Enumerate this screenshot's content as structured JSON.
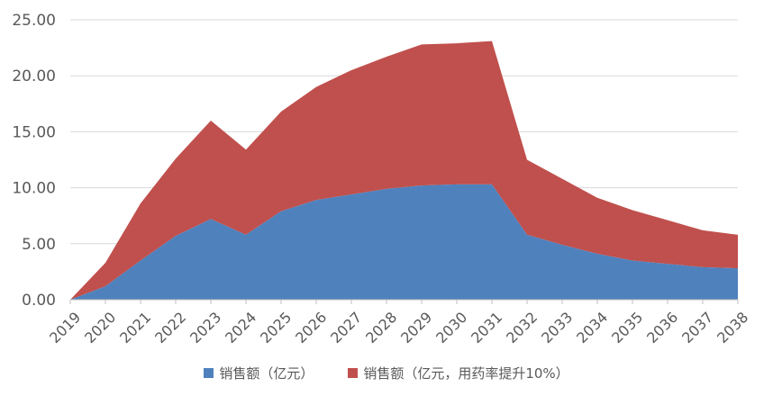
{
  "chart_data": {
    "type": "area",
    "stacked": true,
    "categories": [
      "2019",
      "2020",
      "2021",
      "2022",
      "2023",
      "2024",
      "2025",
      "2026",
      "2027",
      "2028",
      "2029",
      "2030",
      "2031",
      "2032",
      "2033",
      "2034",
      "2035",
      "2036",
      "2037",
      "2038"
    ],
    "series": [
      {
        "name": "销售额（亿元）",
        "color": "#4f81bd",
        "values": [
          0.0,
          1.2,
          3.5,
          5.7,
          7.2,
          5.8,
          7.9,
          8.9,
          9.4,
          9.9,
          10.2,
          10.3,
          10.3,
          5.8,
          4.9,
          4.1,
          3.5,
          3.2,
          2.9,
          2.8
        ]
      },
      {
        "name": "销售额（亿元，用药率提升10%）",
        "color": "#c0504d",
        "values": [
          0.0,
          2.1,
          5.1,
          6.9,
          8.8,
          7.6,
          8.9,
          10.1,
          11.1,
          11.8,
          12.6,
          12.6,
          12.8,
          6.7,
          5.9,
          5.0,
          4.5,
          3.9,
          3.3,
          3.0
        ]
      }
    ],
    "y_ticks": [
      "0.00",
      "5.00",
      "10.00",
      "15.00",
      "20.00",
      "25.00"
    ],
    "ylim": [
      0,
      25
    ],
    "grid": true,
    "legend_position": "bottom"
  }
}
